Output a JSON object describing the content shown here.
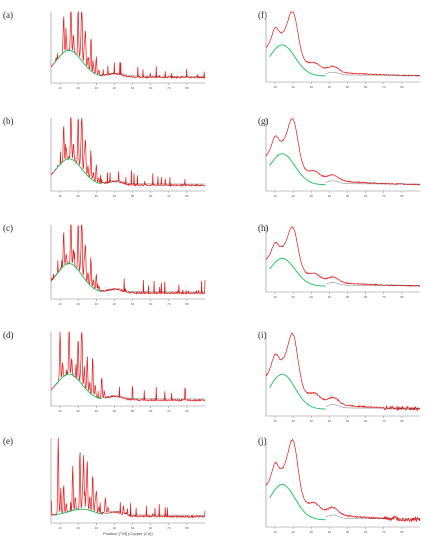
{
  "figure": {
    "panel_labels": [
      "(a)",
      "(b)",
      "(c)",
      "(d)",
      "(e)",
      "(f)",
      "(g)",
      "(h)",
      "(i)",
      "(j)"
    ],
    "x_axis_title_e": "Position [°2θ] (Copper (Cu))",
    "x_tick_labels": [
      "10",
      "20",
      "30",
      "40",
      "50",
      "60",
      "70",
      "80"
    ]
  },
  "chart_data": [
    {
      "panel": "(a)",
      "type": "line",
      "xlim": [
        5,
        90
      ],
      "series": [
        {
          "color": "#e8191a",
          "peaks": [
            [
              12,
              0.55
            ],
            [
              16,
              0.85
            ],
            [
              20,
              0.72
            ],
            [
              22,
              0.95
            ],
            [
              24,
              0.5
            ],
            [
              27,
              0.45
            ],
            [
              30,
              0.25
            ]
          ],
          "tail": 0.12
        },
        {
          "color": "#1dbf5a",
          "hump_center": 15,
          "hump_height": 0.38
        }
      ]
    },
    {
      "panel": "(b)",
      "type": "line",
      "xlim": [
        5,
        90
      ],
      "series": [
        {
          "color": "#e8191a",
          "peaks": [
            [
              12,
              0.52
            ],
            [
              16,
              0.82
            ],
            [
              20,
              0.7
            ],
            [
              22,
              0.92
            ],
            [
              24,
              0.48
            ],
            [
              27,
              0.4
            ],
            [
              30,
              0.25
            ]
          ],
          "tail": 0.12
        },
        {
          "color": "#1dbf5a",
          "hump_center": 15,
          "hump_height": 0.36
        }
      ]
    },
    {
      "panel": "(c)",
      "type": "line",
      "xlim": [
        5,
        90
      ],
      "series": [
        {
          "color": "#e8191a",
          "peaks": [
            [
              12,
              0.5
            ],
            [
              16,
              0.78
            ],
            [
              20,
              0.68
            ],
            [
              22,
              0.95
            ],
            [
              24,
              0.5
            ],
            [
              27,
              0.4
            ],
            [
              30,
              0.22
            ]
          ],
          "tail": 0.12
        },
        {
          "color": "#1dbf5a",
          "hump_center": 15,
          "hump_height": 0.4
        }
      ]
    },
    {
      "panel": "(d)",
      "type": "line",
      "xlim": [
        5,
        90
      ],
      "series": [
        {
          "color": "#e8191a",
          "peaks": [
            [
              10,
              0.7
            ],
            [
              15,
              0.8
            ],
            [
              20,
              0.6
            ],
            [
              22,
              0.95
            ],
            [
              25,
              0.5
            ],
            [
              28,
              0.55
            ],
            [
              33,
              0.3
            ]
          ],
          "tail": 0.12
        },
        {
          "color": "#1dbf5a",
          "hump_center": 15,
          "hump_height": 0.35
        }
      ]
    },
    {
      "panel": "(e)",
      "type": "line",
      "xlim": [
        5,
        90
      ],
      "series": [
        {
          "color": "#e8191a",
          "peaks": [
            [
              9,
              0.95
            ],
            [
              12,
              0.35
            ],
            [
              17,
              0.55
            ],
            [
              21,
              0.7
            ],
            [
              23,
              0.65
            ],
            [
              25,
              0.6
            ],
            [
              28,
              0.45
            ],
            [
              30,
              0.25
            ],
            [
              35,
              0.2
            ],
            [
              45,
              0.1
            ]
          ],
          "tail": 0.06
        },
        {
          "color": "#1dbf5a",
          "hump_center": 22,
          "hump_height": 0.08
        }
      ]
    },
    {
      "panel": "(f)",
      "type": "line",
      "xlim": [
        5,
        90
      ],
      "series": [
        {
          "color": "#e8191a",
          "amorphous": true,
          "main_peak": [
            20,
            0.78
          ],
          "shoulder": [
            10,
            0.5
          ],
          "tail": 0.05
        },
        {
          "color": "#1dbf5a",
          "hump_center": 14,
          "hump_height": 0.45
        }
      ]
    },
    {
      "panel": "(g)",
      "type": "line",
      "xlim": [
        5,
        90
      ],
      "series": [
        {
          "color": "#e8191a",
          "amorphous": true,
          "main_peak": [
            20,
            0.76
          ],
          "shoulder": [
            10,
            0.48
          ],
          "tail": 0.05
        },
        {
          "color": "#1dbf5a",
          "hump_center": 14,
          "hump_height": 0.43
        }
      ]
    },
    {
      "panel": "(h)",
      "type": "line",
      "xlim": [
        5,
        90
      ],
      "series": [
        {
          "color": "#e8191a",
          "amorphous": true,
          "main_peak": [
            20,
            0.74
          ],
          "shoulder": [
            10,
            0.45
          ],
          "tail": 0.05
        },
        {
          "color": "#1dbf5a",
          "hump_center": 14,
          "hump_height": 0.42
        }
      ]
    },
    {
      "panel": "(i)",
      "type": "line",
      "xlim": [
        5,
        90
      ],
      "series": [
        {
          "color": "#e8191a",
          "amorphous": true,
          "main_peak": [
            20,
            0.75
          ],
          "shoulder": [
            10,
            0.45
          ],
          "tail": 0.05,
          "noisy_tail": true
        },
        {
          "color": "#1dbf5a",
          "hump_center": 14,
          "hump_height": 0.42
        }
      ]
    },
    {
      "panel": "(j)",
      "type": "line",
      "xlim": [
        5,
        90
      ],
      "series": [
        {
          "color": "#e8191a",
          "amorphous": true,
          "main_peak": [
            20,
            0.75
          ],
          "shoulder": [
            10,
            0.45
          ],
          "tail": 0.05,
          "noisy_tail": true
        },
        {
          "color": "#1dbf5a",
          "hump_center": 14,
          "hump_height": 0.4
        }
      ]
    }
  ]
}
